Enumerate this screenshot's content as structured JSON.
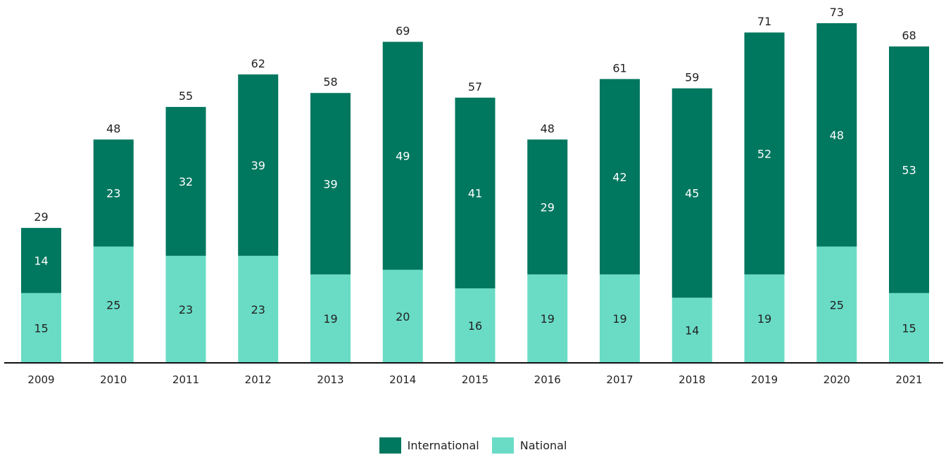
{
  "colors": {
    "international": "#00775f",
    "national": "#6adcc6",
    "axis": "#111111",
    "label_dark": "#222222",
    "label_light": "#ffffff"
  },
  "legend": {
    "international_label": "International",
    "national_label": "National"
  },
  "chart_data": {
    "type": "bar",
    "stacked": true,
    "categories": [
      "2009",
      "2010",
      "2011",
      "2012",
      "2013",
      "2014",
      "2015",
      "2016",
      "2017",
      "2018",
      "2019",
      "2020",
      "2021"
    ],
    "series": [
      {
        "name": "National",
        "values": [
          15,
          25,
          23,
          23,
          19,
          20,
          16,
          19,
          19,
          14,
          19,
          25,
          15
        ]
      },
      {
        "name": "International",
        "values": [
          14,
          23,
          32,
          39,
          39,
          49,
          41,
          29,
          42,
          45,
          52,
          48,
          53
        ]
      }
    ],
    "totals": [
      29,
      48,
      55,
      62,
      58,
      69,
      57,
      48,
      61,
      59,
      71,
      73,
      68
    ],
    "ylim": [
      0,
      73
    ],
    "grid": false,
    "legend_position": "bottom-center"
  }
}
